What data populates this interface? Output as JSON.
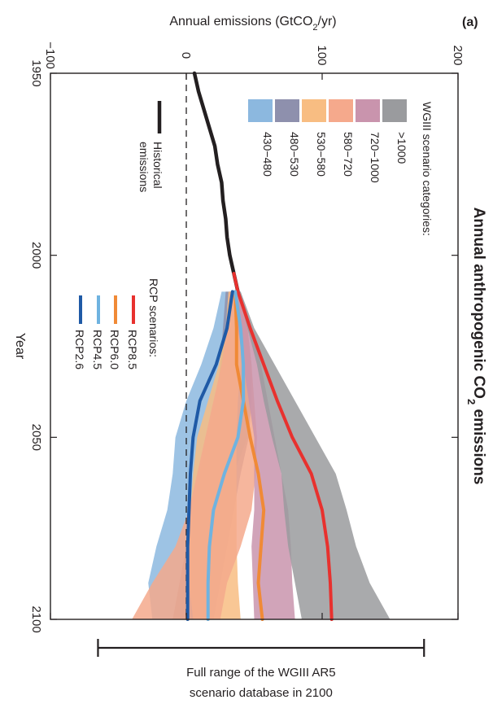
{
  "chart_data": {
    "type": "area",
    "orientation": "rotated-90-clockwise",
    "title_prefix": "Annual anthropogenic CO",
    "title_sub": "2",
    "title_suffix": " emissions",
    "panel_label": "(a)",
    "xlabel": "Year",
    "ylabel_prefix": "Annual emissions (GtCO",
    "ylabel_sub": "2",
    "ylabel_suffix": "/yr)",
    "xlim": [
      1950,
      2100
    ],
    "ylim": [
      -100,
      200
    ],
    "x_ticks": [
      "1950",
      "2000",
      "2050",
      "2100"
    ],
    "y_ticks": [
      "−100",
      "0",
      "100",
      "200"
    ],
    "x_tick_values": [
      1950,
      2000,
      2050,
      2100
    ],
    "y_tick_values": [
      -100,
      0,
      100,
      200
    ],
    "zero_line": true,
    "historical": {
      "label_line1": "Historical",
      "label_line2": "emissions",
      "color": "#231f20",
      "x": [
        1950,
        1955,
        1960,
        1965,
        1970,
        1975,
        1980,
        1985,
        1990,
        1995,
        2000,
        2005,
        2010
      ],
      "y": [
        6,
        9,
        13,
        17,
        21,
        23,
        26,
        27,
        29,
        30,
        32,
        35,
        38
      ]
    },
    "categories_title": "WGIII scenario categories:",
    "categories": [
      {
        "name": "430−480",
        "color": "#8cb8df",
        "x": [
          2010,
          2020,
          2030,
          2040,
          2050,
          2060,
          2070,
          2080,
          2090,
          2100
        ],
        "low": [
          26,
          20,
          11,
          0,
          -8,
          -10,
          -14,
          -22,
          -28,
          -25
        ],
        "high": [
          38,
          45,
          48,
          48,
          45,
          35,
          25,
          15,
          12,
          10
        ]
      },
      {
        "name": "480−530",
        "color": "#8e90ad",
        "x": [
          2010,
          2020,
          2030,
          2040,
          2050,
          2060,
          2070,
          2080,
          2090,
          2100
        ],
        "low": [
          29,
          27,
          25,
          22,
          15,
          10,
          5,
          0,
          -5,
          -10
        ],
        "high": [
          40,
          45,
          48,
          48,
          46,
          40,
          35,
          30,
          25,
          20
        ]
      },
      {
        "name": "530−580",
        "color": "#f8bd82",
        "x": [
          2010,
          2020,
          2030,
          2040,
          2050,
          2060,
          2070,
          2080,
          2090,
          2100
        ],
        "low": [
          31,
          29,
          24,
          16,
          8,
          5,
          3,
          1,
          2,
          5
        ],
        "high": [
          38,
          40,
          40,
          38,
          37,
          37,
          37,
          37,
          38,
          40
        ]
      },
      {
        "name": "580−720",
        "color": "#f5a98c",
        "x": [
          2010,
          2020,
          2030,
          2040,
          2050,
          2060,
          2070,
          2080,
          2090,
          2100
        ],
        "low": [
          32,
          30,
          26,
          20,
          14,
          8,
          2,
          -8,
          -25,
          -40
        ],
        "high": [
          38,
          45,
          48,
          50,
          52,
          51,
          48,
          40,
          30,
          25
        ]
      },
      {
        "name": "720−1000",
        "color": "#c994ad",
        "x": [
          2010,
          2020,
          2030,
          2040,
          2050,
          2060,
          2070,
          2080,
          2090,
          2100
        ],
        "low": [
          35,
          38,
          42,
          46,
          50,
          50,
          50,
          48,
          49,
          50
        ],
        "high": [
          40,
          48,
          55,
          60,
          65,
          70,
          75,
          77,
          78,
          80
        ]
      },
      {
        "name": ">1000",
        "color": "#9a9b9e",
        "x": [
          2010,
          2020,
          2030,
          2040,
          2050,
          2060,
          2070,
          2080,
          2090,
          2100
        ],
        "low": [
          38,
          45,
          52,
          57,
          63,
          70,
          72,
          75,
          80,
          85
        ],
        "high": [
          40,
          50,
          65,
          80,
          95,
          110,
          118,
          125,
          135,
          150
        ]
      }
    ],
    "rcp_title": "RCP scenarios:",
    "rcp": [
      {
        "name": "RCP8.5",
        "color": "#e8312e",
        "x": [
          2005,
          2010,
          2020,
          2030,
          2040,
          2050,
          2060,
          2070,
          2080,
          2090,
          2100
        ],
        "y": [
          35,
          38,
          47,
          57,
          67,
          78,
          92,
          100,
          104,
          106,
          107
        ]
      },
      {
        "name": "RCP6.0",
        "color": "#f08a36",
        "x": [
          2010,
          2020,
          2030,
          2040,
          2050,
          2060,
          2070,
          2080,
          2090,
          2100
        ],
        "y": [
          36,
          37,
          37,
          42,
          47,
          53,
          57,
          55,
          53,
          56
        ]
      },
      {
        "name": "RCP4.5",
        "color": "#6fb3e0",
        "x": [
          2010,
          2020,
          2030,
          2040,
          2050,
          2060,
          2070,
          2080,
          2090,
          2100
        ],
        "y": [
          36,
          40,
          42,
          42,
          38,
          28,
          20,
          17,
          16,
          16
        ]
      },
      {
        "name": "RCP2.6",
        "color": "#1f5aa6",
        "x": [
          2010,
          2020,
          2030,
          2040,
          2050,
          2060,
          2070,
          2080,
          2090,
          2100
        ],
        "y": [
          34,
          30,
          22,
          10,
          5,
          3,
          2,
          1,
          1,
          1
        ]
      }
    ],
    "full_range": {
      "label_line1": "Full range of the WGIII AR5",
      "label_line2": "scenario database in 2100",
      "low": -65,
      "high": 175
    }
  }
}
